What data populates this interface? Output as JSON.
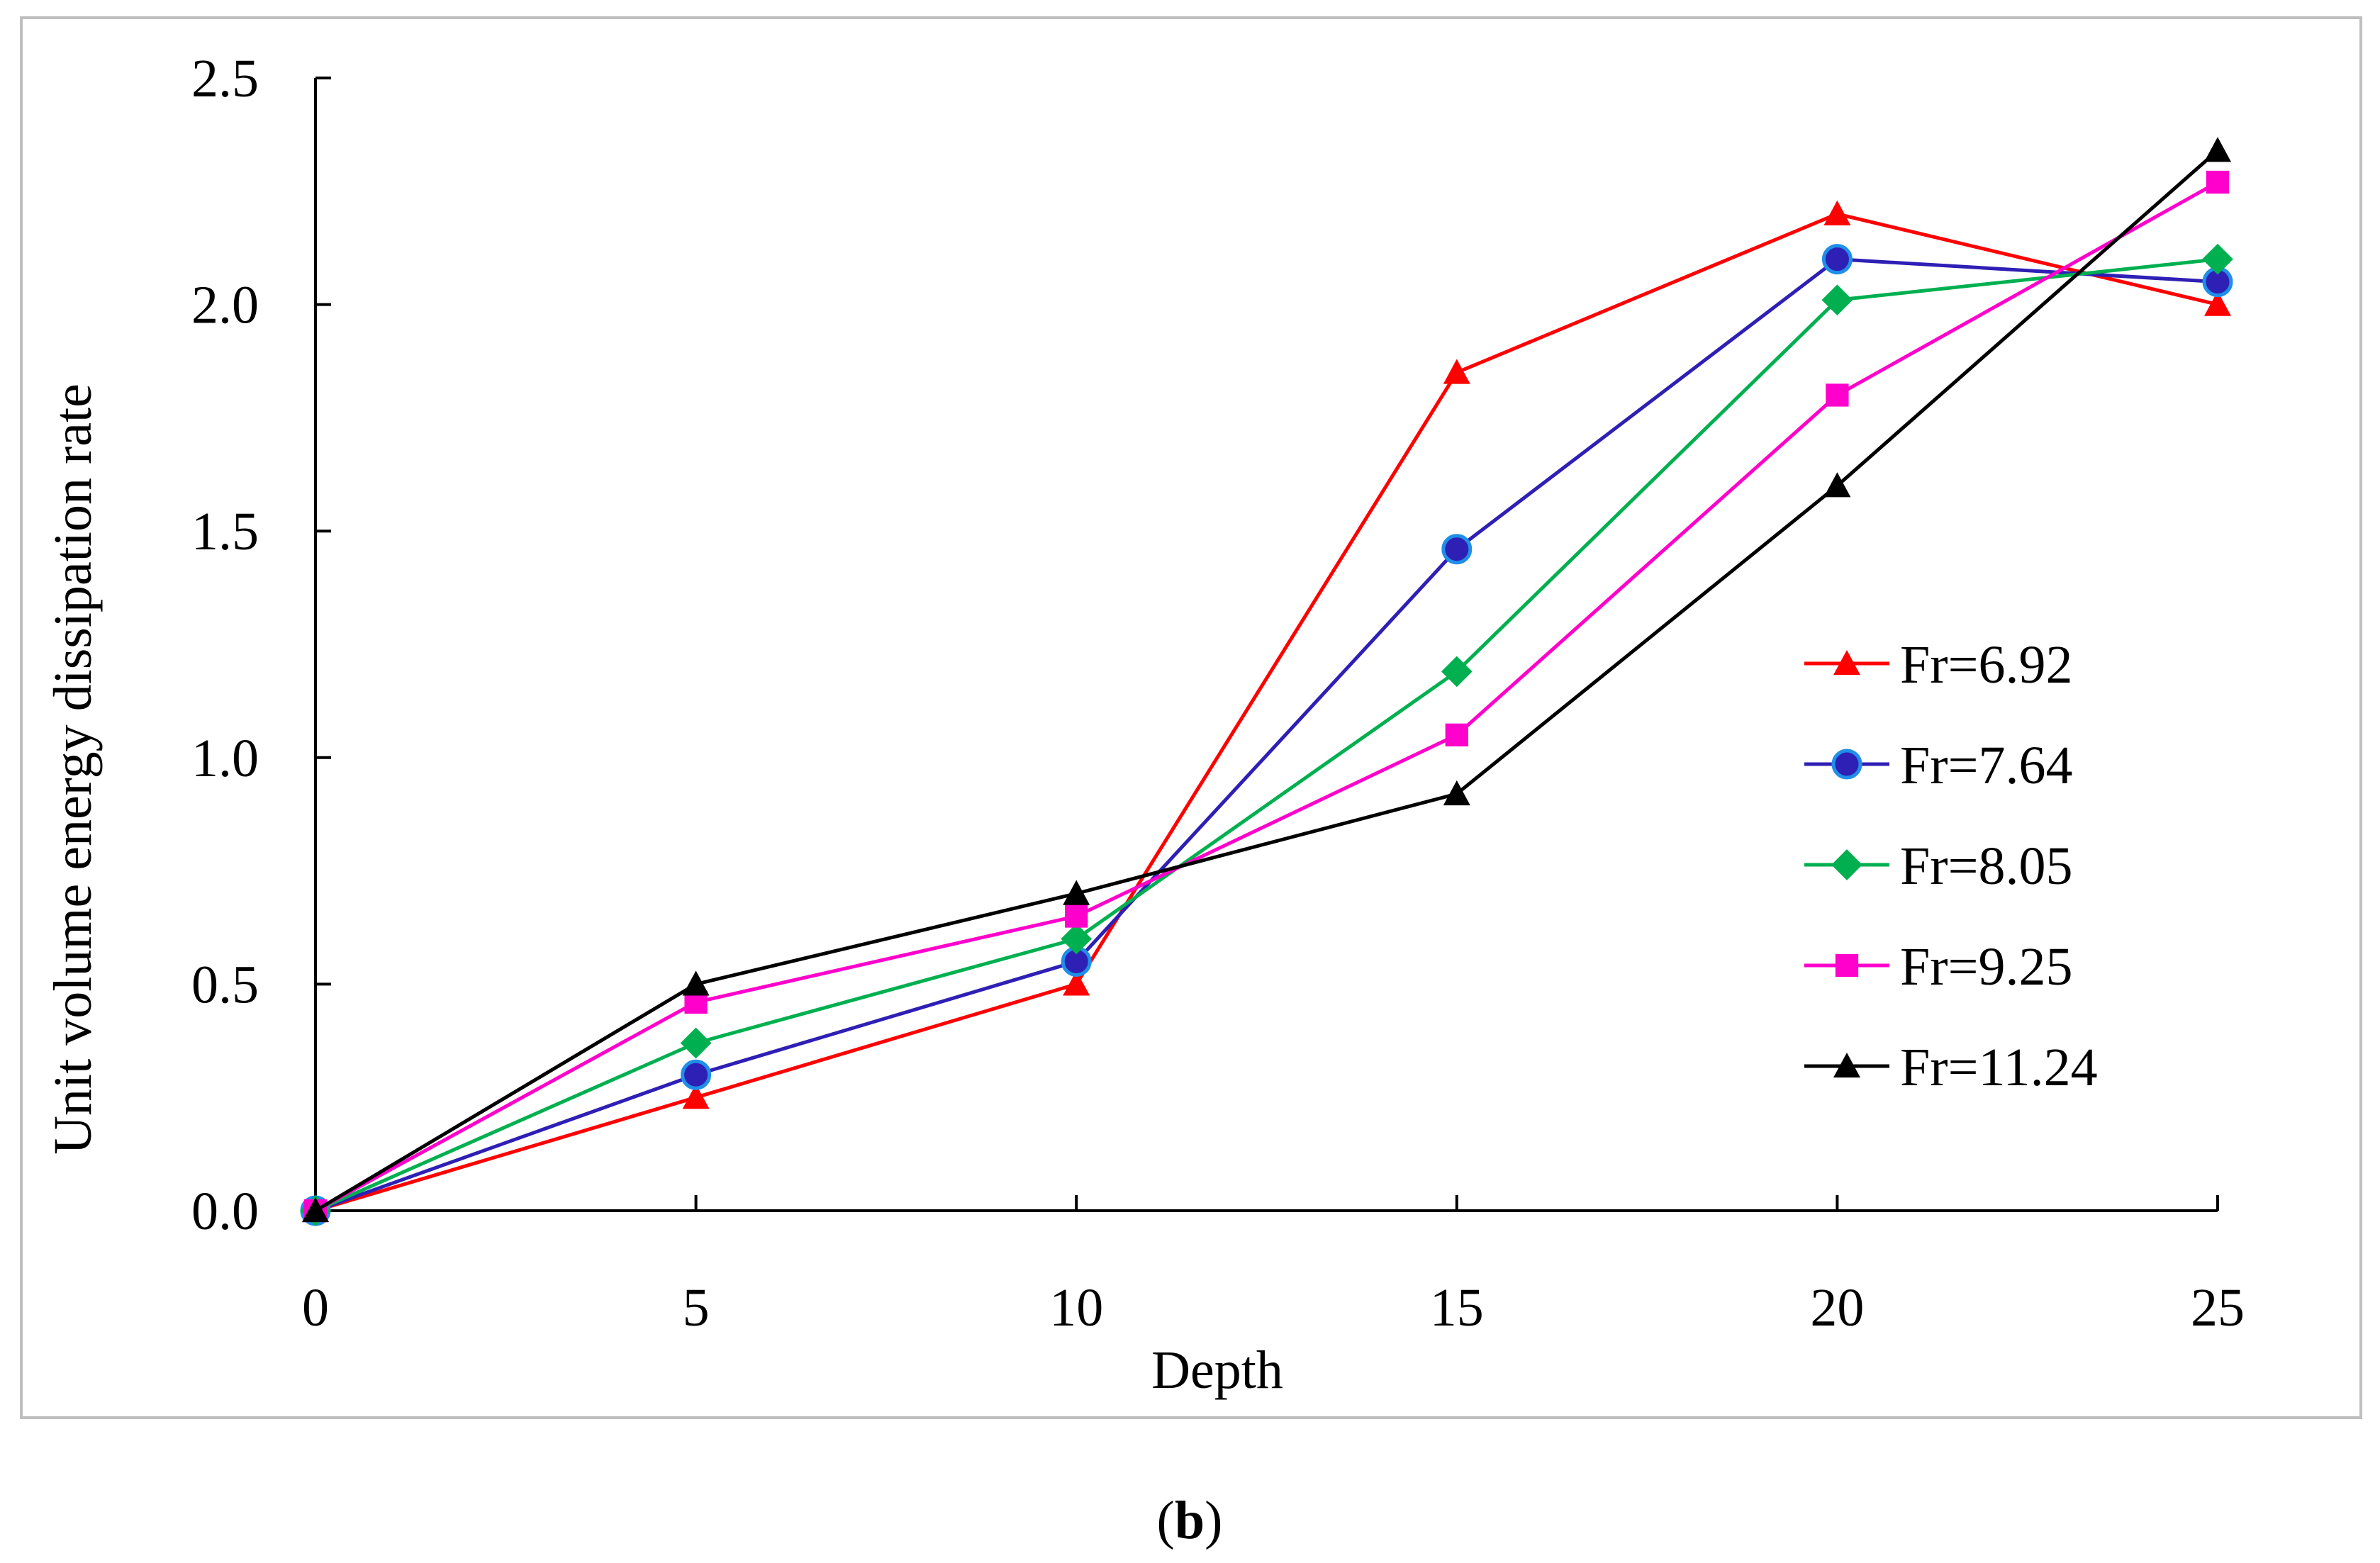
{
  "chart_data": {
    "type": "line",
    "title": "",
    "xlabel": "Depth",
    "ylabel": "Unit volume energy dissipation rate",
    "x": [
      0,
      5,
      10,
      15,
      20,
      25
    ],
    "xlim": [
      0,
      25
    ],
    "ylim": [
      0,
      2.5
    ],
    "xticks": [
      "0",
      "5",
      "10",
      "15",
      "20",
      "25"
    ],
    "yticks": [
      "0.0",
      "0.5",
      "1.0",
      "1.5",
      "2.0",
      "2.5"
    ],
    "grid": false,
    "legend_position": "right",
    "series": [
      {
        "name": "Fr=6.92",
        "color": "#ff0000",
        "marker": "triangle",
        "values": [
          0,
          0.25,
          0.5,
          1.85,
          2.2,
          2.0
        ]
      },
      {
        "name": "Fr=7.64",
        "color": "#2e1fb5",
        "marker": "circle",
        "values": [
          0,
          0.3,
          0.55,
          1.46,
          2.1,
          2.05
        ]
      },
      {
        "name": "Fr=8.05",
        "color": "#00b050",
        "marker": "diamond",
        "values": [
          0,
          0.37,
          0.6,
          1.19,
          2.01,
          2.1
        ]
      },
      {
        "name": "Fr=9.25",
        "color": "#ff00cc",
        "marker": "square",
        "values": [
          0,
          0.46,
          0.65,
          1.05,
          1.8,
          2.27
        ]
      },
      {
        "name": "Fr=11.24",
        "color": "#000000",
        "marker": "triangle",
        "values": [
          0,
          0.5,
          0.7,
          0.92,
          1.6,
          2.34
        ]
      }
    ]
  },
  "caption": {
    "open": "(",
    "letter": "b",
    "close": ")"
  }
}
